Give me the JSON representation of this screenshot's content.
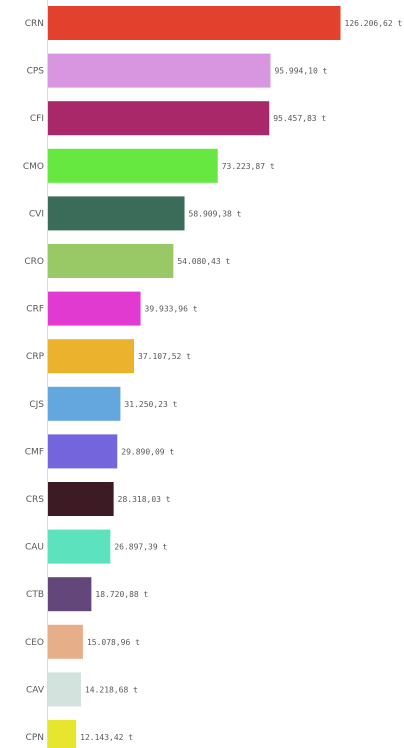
{
  "chart_data": {
    "type": "bar",
    "orientation": "horizontal",
    "categories": [
      "CRN",
      "CPS",
      "CFI",
      "CMO",
      "CVI",
      "CRO",
      "CRF",
      "CRP",
      "CJS",
      "CMF",
      "CRS",
      "CAU",
      "CTB",
      "CEO",
      "CAV",
      "CPN"
    ],
    "values": [
      126206.62,
      95994.1,
      95457.83,
      73223.87,
      58909.38,
      54080.43,
      39933.96,
      37107.52,
      31250.23,
      29890.09,
      28318.03,
      26897.39,
      18720.88,
      15078.96,
      14218.68,
      12143.42
    ],
    "value_labels": [
      "126.206,62 t",
      "95.994,10 t",
      "95.457,83 t",
      "73.223,87 t",
      "58.909,38 t",
      "54.080,43 t",
      "39.933,96 t",
      "37.107,52 t",
      "31.250,23 t",
      "29.890,09 t",
      "28.318,03 t",
      "26.897,39 t",
      "18.720,88 t",
      "15.078,96 t",
      "14.218,68 t",
      "12.143,42 t"
    ],
    "colors": [
      "#e2412e",
      "#d896e0",
      "#a8286a",
      "#66e840",
      "#3b6b59",
      "#99c866",
      "#e03ad0",
      "#eab22d",
      "#64a7de",
      "#7565dc",
      "#3d1b24",
      "#5ce3be",
      "#63477a",
      "#e7ae8a",
      "#d2e2dc",
      "#e6e62e"
    ],
    "xlim": [
      0,
      126206.62
    ],
    "grid": false,
    "legend": "none"
  }
}
